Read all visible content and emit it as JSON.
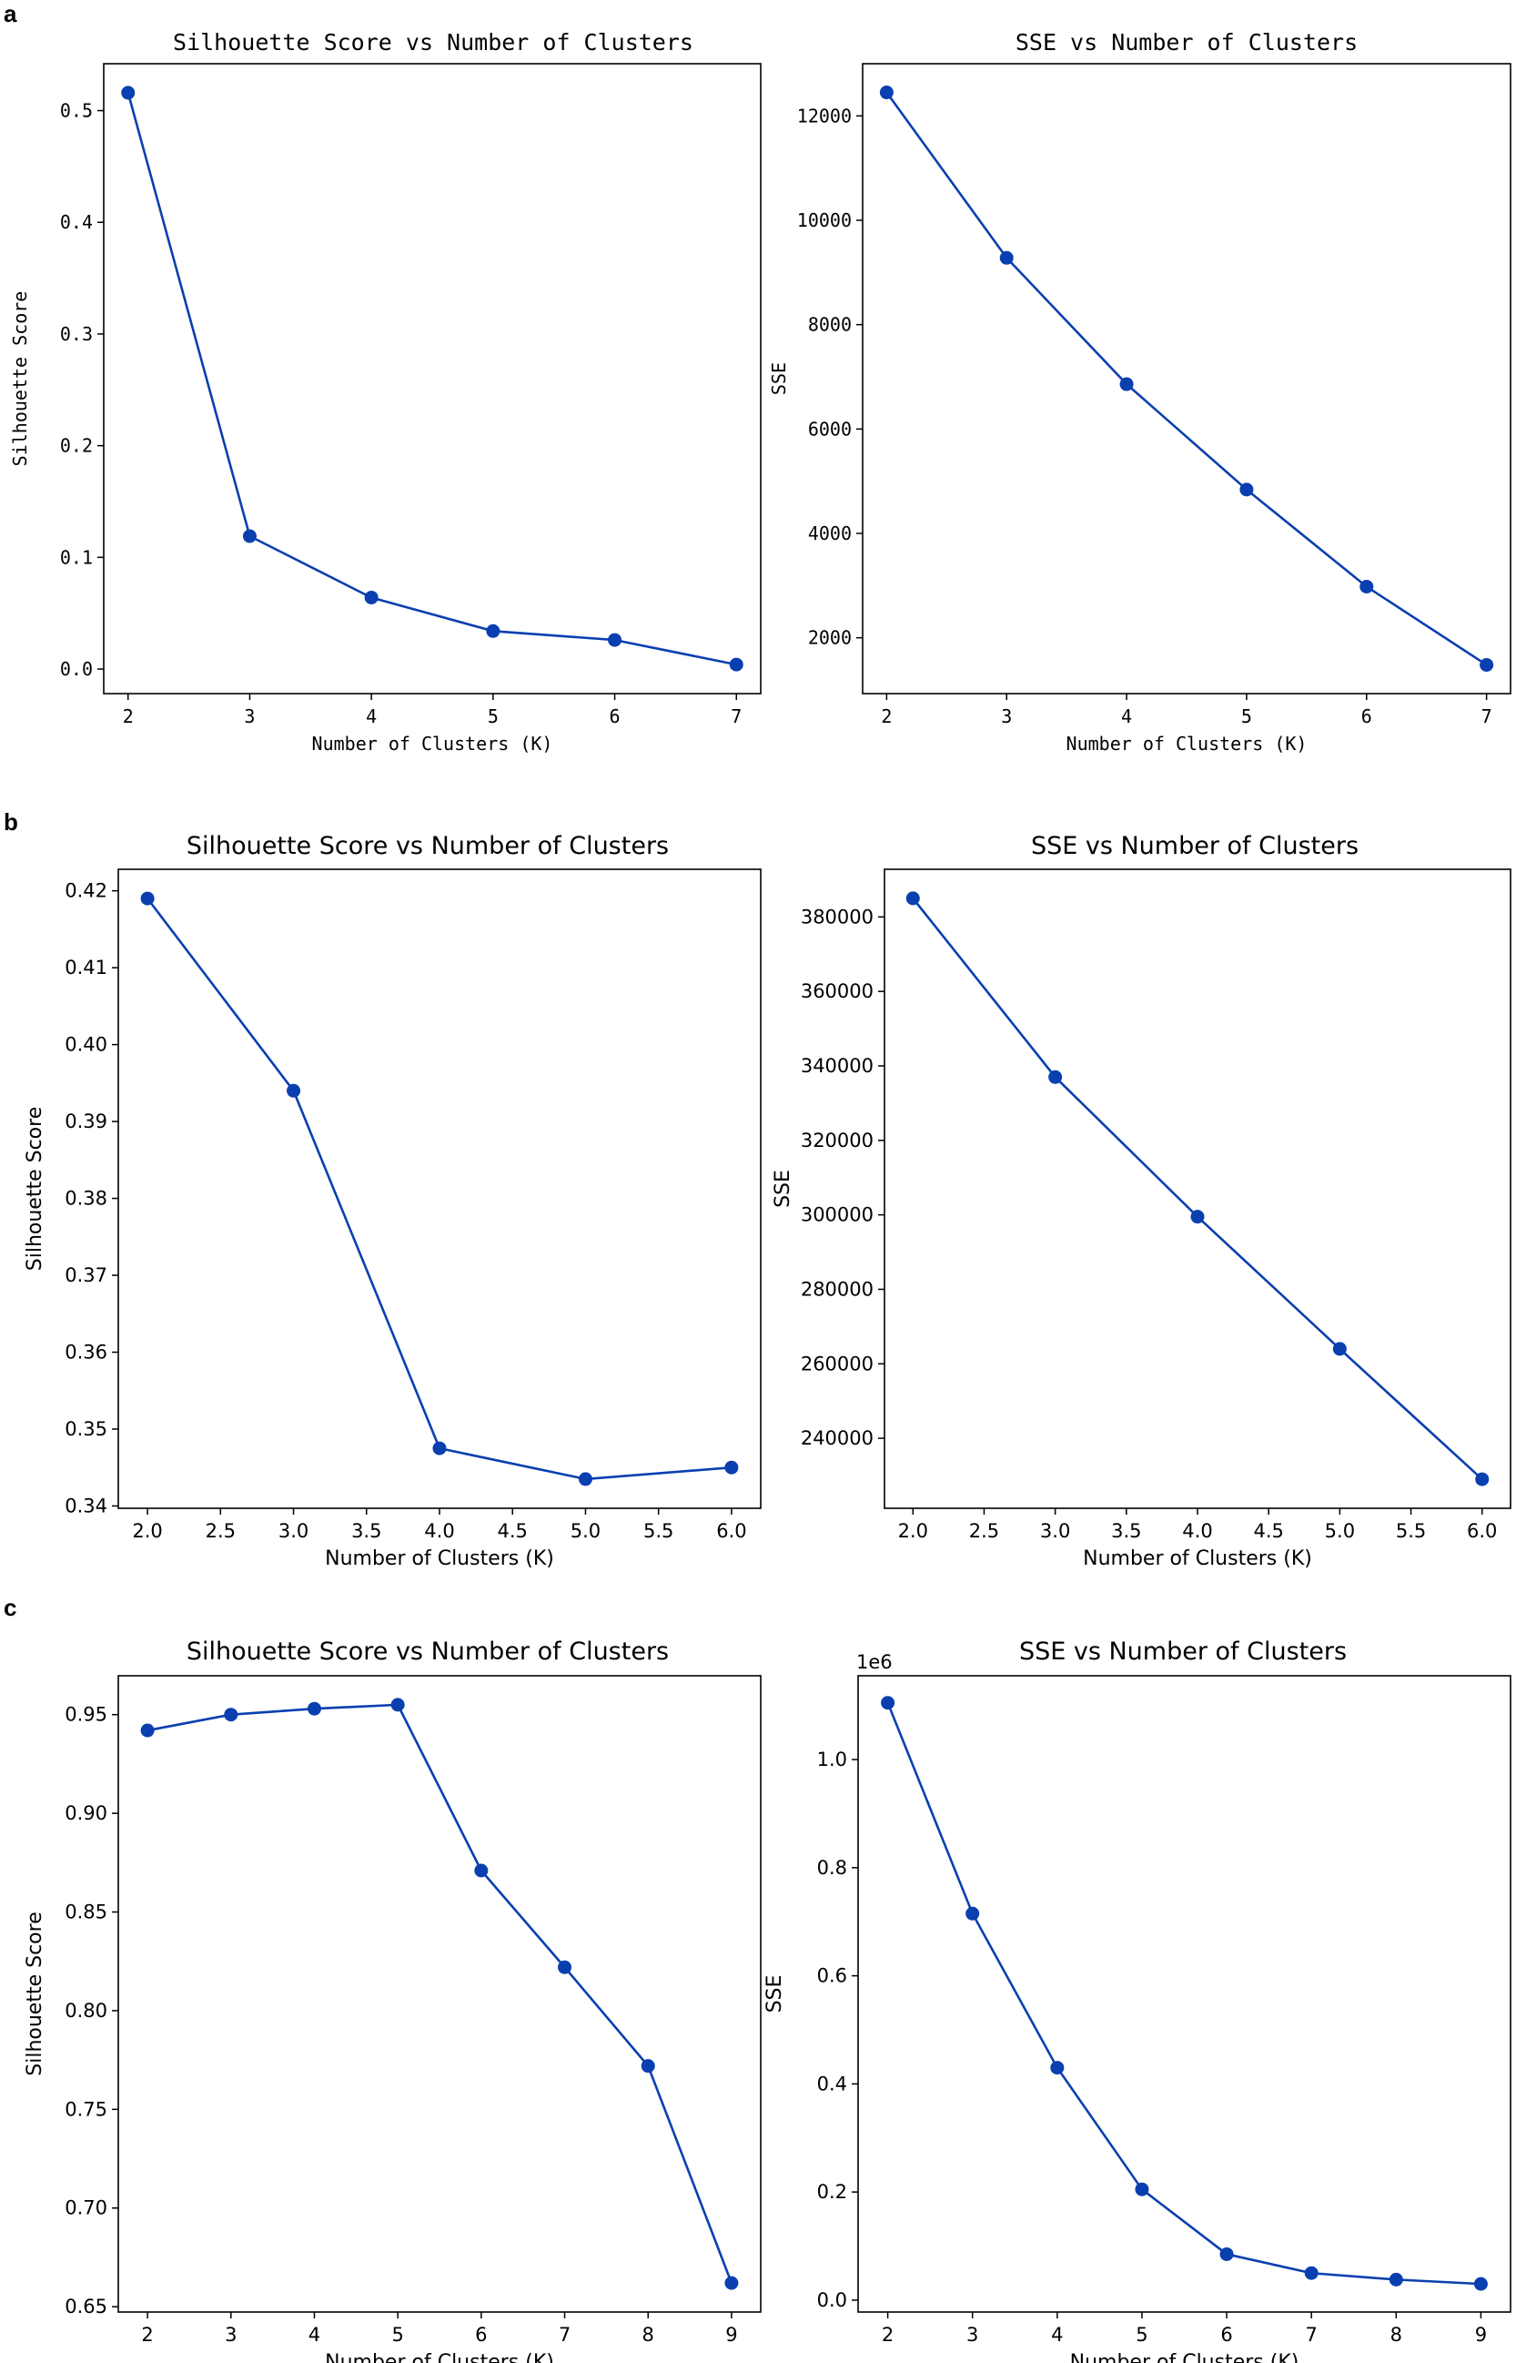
{
  "panels": [
    {
      "label": "a",
      "charts": [
        {
          "type": "line",
          "title": "Silhouette Score vs Number of Clusters",
          "xlabel": "Number of Clusters (K)",
          "ylabel": "Silhouette Score",
          "x": [
            2,
            3,
            4,
            5,
            6,
            7
          ],
          "y": [
            0.516,
            0.119,
            0.064,
            0.034,
            0.026,
            0.004
          ],
          "xlim": [
            1.8,
            7.2
          ],
          "ylim": [
            -0.022,
            0.542
          ],
          "xticks": [
            2,
            3,
            4,
            5,
            6,
            7
          ],
          "xtick_labels": [
            "2",
            "3",
            "4",
            "5",
            "6",
            "7"
          ],
          "yticks": [
            0.0,
            0.1,
            0.2,
            0.3,
            0.4,
            0.5
          ],
          "ytick_labels": [
            "0.0",
            "0.1",
            "0.2",
            "0.3",
            "0.4",
            "0.5"
          ],
          "offset_label": "",
          "color": "#0a3fb0"
        },
        {
          "type": "line",
          "title": "SSE vs Number of Clusters",
          "xlabel": "Number of Clusters (K)",
          "ylabel": "SSE",
          "x": [
            2,
            3,
            4,
            5,
            6,
            7
          ],
          "y": [
            12450,
            9280,
            6860,
            4840,
            2980,
            1480
          ],
          "xlim": [
            1.8,
            7.2
          ],
          "ylim": [
            930,
            13000
          ],
          "xticks": [
            2,
            3,
            4,
            5,
            6,
            7
          ],
          "xtick_labels": [
            "2",
            "3",
            "4",
            "5",
            "6",
            "7"
          ],
          "yticks": [
            2000,
            4000,
            6000,
            8000,
            10000,
            12000
          ],
          "ytick_labels": [
            "2000",
            "4000",
            "6000",
            "8000",
            "10000",
            "12000"
          ],
          "offset_label": "",
          "color": "#0a3fb0"
        }
      ]
    },
    {
      "label": "b",
      "charts": [
        {
          "type": "line",
          "title": "Silhouette Score vs Number of Clusters",
          "xlabel": "Number of Clusters (K)",
          "ylabel": "Silhouette Score",
          "x": [
            2.0,
            3.0,
            4.0,
            5.0,
            6.0
          ],
          "y": [
            0.419,
            0.394,
            0.3475,
            0.3435,
            0.345
          ],
          "xlim": [
            1.8,
            6.2
          ],
          "ylim": [
            0.3397,
            0.4228
          ],
          "xticks": [
            2.0,
            2.5,
            3.0,
            3.5,
            4.0,
            4.5,
            5.0,
            5.5,
            6.0
          ],
          "xtick_labels": [
            "2.0",
            "2.5",
            "3.0",
            "3.5",
            "4.0",
            "4.5",
            "5.0",
            "5.5",
            "6.0"
          ],
          "yticks": [
            0.34,
            0.35,
            0.36,
            0.37,
            0.38,
            0.39,
            0.4,
            0.41,
            0.42
          ],
          "ytick_labels": [
            "0.34",
            "0.35",
            "0.36",
            "0.37",
            "0.38",
            "0.39",
            "0.40",
            "0.41",
            "0.42"
          ],
          "offset_label": "",
          "color": "#0a3fb0"
        },
        {
          "type": "line",
          "title": "SSE vs Number of Clusters",
          "xlabel": "Number of Clusters (K)",
          "ylabel": "SSE",
          "x": [
            2.0,
            3.0,
            4.0,
            5.0,
            6.0
          ],
          "y": [
            385000,
            337000,
            299500,
            264000,
            229000
          ],
          "xlim": [
            1.8,
            6.2
          ],
          "ylim": [
            221200,
            392800
          ],
          "xticks": [
            2.0,
            2.5,
            3.0,
            3.5,
            4.0,
            4.5,
            5.0,
            5.5,
            6.0
          ],
          "xtick_labels": [
            "2.0",
            "2.5",
            "3.0",
            "3.5",
            "4.0",
            "4.5",
            "5.0",
            "5.5",
            "6.0"
          ],
          "yticks": [
            240000,
            260000,
            280000,
            300000,
            320000,
            340000,
            360000,
            380000
          ],
          "ytick_labels": [
            "240000",
            "260000",
            "280000",
            "300000",
            "320000",
            "340000",
            "360000",
            "380000"
          ],
          "offset_label": "",
          "color": "#0a3fb0"
        }
      ]
    },
    {
      "label": "c",
      "charts": [
        {
          "type": "line",
          "title": "Silhouette Score vs Number of Clusters",
          "xlabel": "Number of Clusters (K)",
          "ylabel": "Silhouette Score",
          "x": [
            2,
            3,
            4,
            5,
            6,
            7,
            8,
            9
          ],
          "y": [
            0.942,
            0.95,
            0.953,
            0.955,
            0.871,
            0.822,
            0.772,
            0.662
          ],
          "xlim": [
            1.65,
            9.35
          ],
          "ylim": [
            0.6473,
            0.9697
          ],
          "xticks": [
            2,
            3,
            4,
            5,
            6,
            7,
            8,
            9
          ],
          "xtick_labels": [
            "2",
            "3",
            "4",
            "5",
            "6",
            "7",
            "8",
            "9"
          ],
          "yticks": [
            0.65,
            0.7,
            0.75,
            0.8,
            0.85,
            0.9,
            0.95
          ],
          "ytick_labels": [
            "0.65",
            "0.70",
            "0.75",
            "0.80",
            "0.85",
            "0.90",
            "0.95"
          ],
          "offset_label": "",
          "color": "#0a3fb0"
        },
        {
          "type": "line",
          "title": "SSE vs Number of Clusters",
          "xlabel": "Number of Clusters (K)",
          "ylabel": "SSE",
          "x": [
            2,
            3,
            4,
            5,
            6,
            7,
            8,
            9
          ],
          "y": [
            1.105,
            0.715,
            0.43,
            0.205,
            0.085,
            0.05,
            0.038,
            0.03
          ],
          "xlim": [
            1.65,
            9.35
          ],
          "ylim": [
            -0.022,
            1.155
          ],
          "xticks": [
            2,
            3,
            4,
            5,
            6,
            7,
            8,
            9
          ],
          "xtick_labels": [
            "2",
            "3",
            "4",
            "5",
            "6",
            "7",
            "8",
            "9"
          ],
          "yticks": [
            0.0,
            0.2,
            0.4,
            0.6,
            0.8,
            1.0
          ],
          "ytick_labels": [
            "0.0",
            "0.2",
            "0.4",
            "0.6",
            "0.8",
            "1.0"
          ],
          "offset_label": "1e6",
          "color": "#0a3fb0"
        }
      ]
    }
  ]
}
